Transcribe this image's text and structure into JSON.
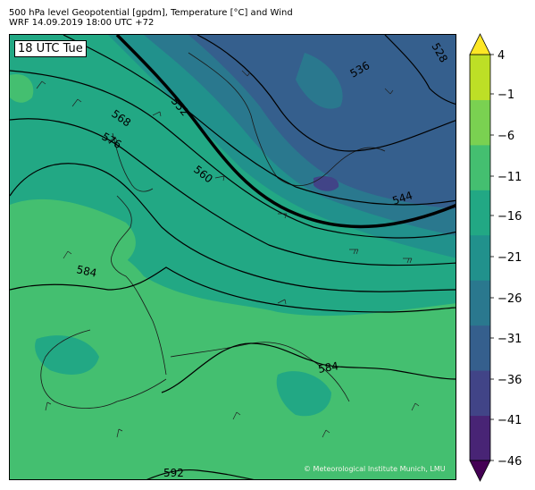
{
  "header": {
    "line1": "500 hPa level Geopotential [gpdm], Temperature [°C] and Wind",
    "line2": "WRF 14.09.2019 18:00 UTC +72"
  },
  "map": {
    "time_label": "18 UTC Tue",
    "copyright": "© Meteorological Institute Munich, LMU",
    "contour_labels": [
      "528",
      "536",
      "544",
      "552",
      "560",
      "568",
      "576",
      "584",
      "584",
      "592"
    ]
  },
  "colorbar": {
    "ticks": [
      "4",
      "−1",
      "−6",
      "−11",
      "−16",
      "−21",
      "−26",
      "−31",
      "−36",
      "−41",
      "−46"
    ],
    "colors": [
      "#440154",
      "#482475",
      "#414487",
      "#355f8d",
      "#2a788e",
      "#21918c",
      "#22a884",
      "#44bf70",
      "#7ad151",
      "#bddf26",
      "#fde725"
    ]
  }
}
